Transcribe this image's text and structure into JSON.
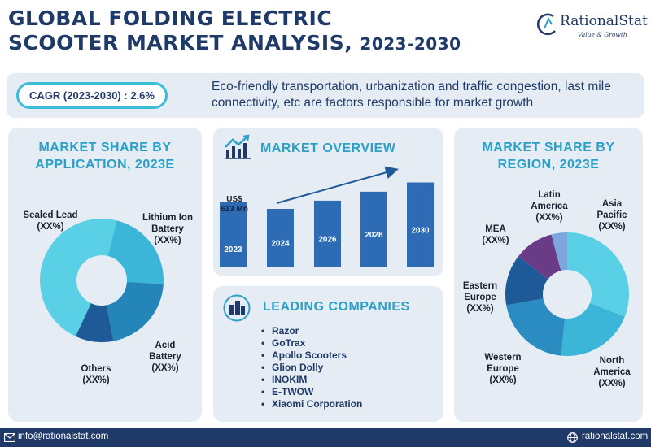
{
  "header": {
    "title_line1": "GLOBAL FOLDING ELECTRIC",
    "title_line2": "SCOOTER MARKET ANALYSIS,",
    "title_years": "2023-2030"
  },
  "logo": {
    "name": "RationalStat",
    "tagline": "Value & Growth"
  },
  "banner": {
    "cagr": "CAGR (2023-2030) : 2.6%",
    "text": "Eco-friendly transportation, urbanization and traffic congestion, last mile connectivity, etc are factors responsible for market growth"
  },
  "colors": {
    "navy": "#1f3a68",
    "accent": "#2aa0c9",
    "panel": "#e5ecf3"
  },
  "chart_data": [
    {
      "type": "pie",
      "title": "MARKET SHARE BY APPLICATION, 2023E",
      "categories": [
        "Sealed Lead",
        "Lithium Ion Battery",
        "Acid Battery",
        "Others"
      ],
      "labels": [
        "Sealed Lead\n(XX%)",
        "Lithium Ion\nBattery\n(XX%)",
        "Acid\nBattery\n(XX%)",
        "Others\n(XX%)"
      ],
      "values": [
        47,
        22,
        21,
        10
      ],
      "colors": [
        "#5ad0e6",
        "#3bb5d8",
        "#2385b8",
        "#1f5a98"
      ]
    },
    {
      "type": "bar",
      "title": "MARKET OVERVIEW",
      "categories": [
        "2023",
        "2024",
        "2026",
        "2028",
        "2030"
      ],
      "values": [
        613,
        630,
        662,
        697,
        733
      ],
      "annotation": "US$\n613 Mn",
      "color": "#2d6cb4"
    },
    {
      "type": "pie",
      "title": "MARKET SHARE BY REGION, 2023E",
      "categories": [
        "Asia Pacific",
        "North America",
        "Western Europe",
        "Eastern Europe",
        "MEA",
        "Latin America"
      ],
      "labels": [
        "Asia\nPacific\n(XX%)",
        "North\nAmerica\n(XX%)",
        "Western\nEurope\n(XX%)",
        "Eastern\nEurope\n(XX%)",
        "MEA\n(XX%)",
        "Latin\nAmerica\n(XX%)"
      ],
      "values": [
        30,
        20,
        20,
        13,
        10,
        4
      ],
      "colors": [
        "#5ad0e6",
        "#3bb5d8",
        "#2a8cc0",
        "#1f5a98",
        "#6a3c88",
        "#7fa6dc"
      ]
    }
  ],
  "leading": {
    "title": "LEADING COMPANIES",
    "items": [
      "Razor",
      "GoTrax",
      "Apollo Scooters",
      "Glion Dolly",
      "INOKIM",
      "E-TWOW",
      "Xiaomi Corporation"
    ]
  },
  "footer": {
    "email": "info@rationalstat.com",
    "site": "rationalstat.com"
  }
}
